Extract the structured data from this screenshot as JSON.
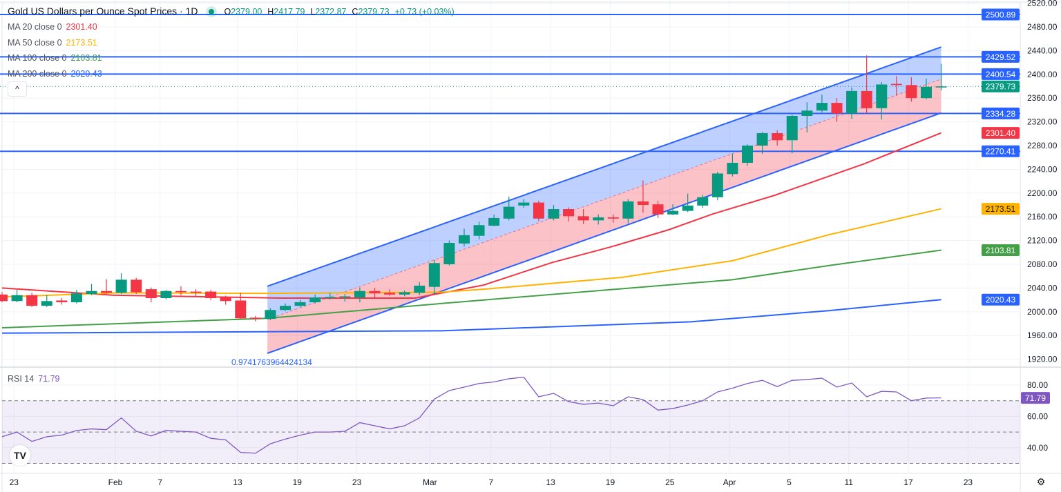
{
  "header": {
    "title": "Gold US Dollars per Ounce Spot Prices · 1D",
    "ohlc": {
      "o_label": "O",
      "o": "2379.00",
      "h_label": "H",
      "h": "2417.79",
      "l_label": "L",
      "l": "2372.87",
      "c_label": "C",
      "c": "2379.73",
      "change": "+0.73 (+0.03%)"
    },
    "collapse_icon": "chevron-up-icon",
    "collapse_glyph": "^"
  },
  "indicators": [
    {
      "label": "MA 20 close 0",
      "value": "2301.40",
      "color": "#f23645"
    },
    {
      "label": "MA 50 close 0",
      "value": "2173.51",
      "color": "#ffb300"
    },
    {
      "label": "MA 100 close 0",
      "value": "2103.81",
      "color": "#43a047"
    },
    {
      "label": "MA 200 close 0",
      "value": "2020.43",
      "color": "#2962ff"
    }
  ],
  "rsi_legend": {
    "label": "RSI 14",
    "value": "71.79",
    "color": "#7e57c2"
  },
  "channel_label": "0.9741763964424134",
  "logo_text": "TV",
  "settings_icon": "gear-icon",
  "settings_glyph": "⚙",
  "colors": {
    "up": "#089981",
    "down": "#f23645",
    "line": "#2962ff",
    "grid": "#f0f3fa",
    "rsi": "#7e57c2"
  },
  "chart_data": {
    "type": "candlestick",
    "title": "Gold US Dollars per Ounce Spot Prices · 1D",
    "ylim": [
      1905,
      2525
    ],
    "y_ticks": [
      "2520.00",
      "2480.00",
      "2440.00",
      "2400.00",
      "2360.00",
      "2320.00",
      "2280.00",
      "2240.00",
      "2200.00",
      "2160.00",
      "2120.00",
      "2080.00",
      "2040.00",
      "2000.00",
      "1960.00",
      "1920.00"
    ],
    "x_ticks": [
      {
        "bar": 0.8,
        "label": "23"
      },
      {
        "bar": 7.6,
        "label": "Feb"
      },
      {
        "bar": 10.6,
        "label": "7"
      },
      {
        "bar": 15.8,
        "label": "13"
      },
      {
        "bar": 19.8,
        "label": "19"
      },
      {
        "bar": 23.8,
        "label": "23"
      },
      {
        "bar": 28.7,
        "label": "Mar"
      },
      {
        "bar": 32.8,
        "label": "7"
      },
      {
        "bar": 36.8,
        "label": "13"
      },
      {
        "bar": 40.8,
        "label": "19"
      },
      {
        "bar": 44.8,
        "label": "25"
      },
      {
        "bar": 48.8,
        "label": "Apr"
      },
      {
        "bar": 52.8,
        "label": "5"
      },
      {
        "bar": 56.8,
        "label": "11"
      },
      {
        "bar": 60.8,
        "label": "17"
      },
      {
        "bar": 64.8,
        "label": "23"
      }
    ],
    "candles_ohlc": [
      [
        2029,
        2033,
        2016,
        2018
      ],
      [
        2018,
        2037,
        2016,
        2028
      ],
      [
        2028,
        2032,
        2008,
        2010
      ],
      [
        2010,
        2028,
        2008,
        2018
      ],
      [
        2019,
        2023,
        2012,
        2016
      ],
      [
        2016,
        2037,
        2014,
        2031
      ],
      [
        2030,
        2047,
        2028,
        2035
      ],
      [
        2035,
        2055,
        2030,
        2032
      ],
      [
        2032,
        2065,
        2030,
        2054
      ],
      [
        2054,
        2057,
        2030,
        2033
      ],
      [
        2038,
        2041,
        2016,
        2023
      ],
      [
        2023,
        2037,
        2021,
        2035
      ],
      [
        2035,
        2043,
        2028,
        2033
      ],
      [
        2034,
        2038,
        2026,
        2032
      ],
      [
        2034,
        2037,
        2020,
        2023
      ],
      [
        2024,
        2027,
        2012,
        2018
      ],
      [
        2019,
        2032,
        1988,
        1989
      ],
      [
        1990,
        1993,
        1984,
        1988
      ],
      [
        1988,
        2006,
        1986,
        2003
      ],
      [
        2003,
        2014,
        2001,
        2010
      ],
      [
        2010,
        2020,
        2008,
        2016
      ],
      [
        2016,
        2029,
        2014,
        2024
      ],
      [
        2024,
        2032,
        2020,
        2025
      ],
      [
        2025,
        2030,
        2017,
        2026
      ],
      [
        2024,
        2041,
        2016,
        2035
      ],
      [
        2035,
        2040,
        2024,
        2031
      ],
      [
        2032,
        2038,
        2027,
        2029
      ],
      [
        2029,
        2036,
        2026,
        2033
      ],
      [
        2032,
        2050,
        2028,
        2044
      ],
      [
        2042,
        2087,
        2030,
        2082
      ],
      [
        2080,
        2120,
        2078,
        2116
      ],
      [
        2115,
        2140,
        2110,
        2129
      ],
      [
        2128,
        2152,
        2122,
        2146
      ],
      [
        2145,
        2164,
        2144,
        2158
      ],
      [
        2157,
        2194,
        2154,
        2177
      ],
      [
        2179,
        2190,
        2175,
        2184
      ],
      [
        2184,
        2187,
        2153,
        2157
      ],
      [
        2157,
        2180,
        2154,
        2173
      ],
      [
        2173,
        2176,
        2152,
        2161
      ],
      [
        2161,
        2173,
        2148,
        2154
      ],
      [
        2154,
        2164,
        2147,
        2159
      ],
      [
        2159,
        2164,
        2150,
        2157
      ],
      [
        2157,
        2190,
        2149,
        2186
      ],
      [
        2186,
        2221,
        2167,
        2180
      ],
      [
        2181,
        2187,
        2158,
        2164
      ],
      [
        2164,
        2181,
        2163,
        2170
      ],
      [
        2170,
        2199,
        2168,
        2179
      ],
      [
        2179,
        2197,
        2175,
        2193
      ],
      [
        2193,
        2236,
        2188,
        2233
      ],
      [
        2232,
        2266,
        2228,
        2251
      ],
      [
        2251,
        2282,
        2246,
        2280
      ],
      [
        2280,
        2303,
        2266,
        2301
      ],
      [
        2301,
        2306,
        2280,
        2289
      ],
      [
        2289,
        2332,
        2267,
        2330
      ],
      [
        2330,
        2353,
        2302,
        2339
      ],
      [
        2339,
        2366,
        2336,
        2352
      ],
      [
        2352,
        2360,
        2320,
        2334
      ],
      [
        2334,
        2378,
        2325,
        2372
      ],
      [
        2372,
        2432,
        2335,
        2343
      ],
      [
        2343,
        2387,
        2324,
        2383
      ],
      [
        2384,
        2397,
        2364,
        2382
      ],
      [
        2382,
        2395,
        2354,
        2360
      ],
      [
        2360,
        2393,
        2358,
        2379
      ],
      [
        2379,
        2417.79,
        2372.87,
        2379.73
      ]
    ],
    "moving_averages": [
      {
        "name": "MA 20",
        "color": "#f23645",
        "points": [
          [
            0,
            2040
          ],
          [
            7.4,
            2028
          ],
          [
            18.8,
            2023
          ],
          [
            27.7,
            2023
          ],
          [
            32.3,
            2045
          ],
          [
            36.9,
            2083
          ],
          [
            40.8,
            2109
          ],
          [
            44.7,
            2138
          ],
          [
            47.7,
            2165
          ],
          [
            51.8,
            2196
          ],
          [
            57.8,
            2249
          ],
          [
            63,
            2301.4
          ]
        ]
      },
      {
        "name": "MA 50",
        "color": "#ffb300",
        "points": [
          [
            0,
            2025
          ],
          [
            7.8,
            2032
          ],
          [
            17.8,
            2031
          ],
          [
            29.5,
            2033
          ],
          [
            32.3,
            2038
          ],
          [
            41.6,
            2058
          ],
          [
            49,
            2086
          ],
          [
            55.5,
            2130
          ],
          [
            63,
            2173.51
          ]
        ]
      },
      {
        "name": "MA 100",
        "color": "#43a047",
        "points": [
          [
            0,
            1973
          ],
          [
            17.8,
            1989
          ],
          [
            29.5,
            2014
          ],
          [
            49,
            2054
          ],
          [
            55.5,
            2078
          ],
          [
            63,
            2103.81
          ]
        ]
      },
      {
        "name": "MA 200",
        "color": "#2962ff",
        "points": [
          [
            0,
            1964
          ],
          [
            29.5,
            1968
          ],
          [
            46.2,
            1983
          ],
          [
            55.5,
            2002
          ],
          [
            63,
            2020.43
          ]
        ]
      }
    ],
    "channel": {
      "start_bar": 17.8,
      "end_bar": 63,
      "upper": [
        2043,
        2446
      ],
      "middle": [
        1987,
        2392
      ],
      "lower": [
        1930,
        2335
      ]
    },
    "horizontal_levels": [
      "2500.89",
      "2429.52",
      "2400.54",
      "2334.28",
      "2270.41"
    ],
    "last_price": "2379.73",
    "price_badges": [
      {
        "value": "2500.89",
        "color": "#2962ff"
      },
      {
        "value": "2429.52",
        "color": "#2962ff"
      },
      {
        "value": "2400.54",
        "color": "#2962ff"
      },
      {
        "value": "2379.73",
        "color": "#089981"
      },
      {
        "value": "2334.28",
        "color": "#2962ff"
      },
      {
        "value": "2301.40",
        "color": "#f23645"
      },
      {
        "value": "2270.41",
        "color": "#2962ff"
      },
      {
        "value": "2173.51",
        "color": "#ffb300"
      },
      {
        "value": "2103.81",
        "color": "#43a047"
      },
      {
        "value": "2020.43",
        "color": "#2962ff"
      }
    ],
    "rsi": {
      "name": "RSI 14",
      "ylim": [
        25,
        90
      ],
      "y_ticks": [
        "80.00",
        "60.00",
        "40.00"
      ],
      "bands": [
        70,
        50,
        30
      ],
      "badge": "71.79",
      "values": [
        47,
        50,
        44,
        47,
        48,
        51,
        52,
        51.5,
        59,
        50.5,
        47.5,
        51,
        50.5,
        50,
        46,
        45,
        37,
        36.5,
        42.5,
        45.5,
        48,
        50,
        50,
        50.5,
        56,
        54,
        52,
        54,
        59,
        71,
        76.5,
        78.7,
        81,
        82,
        84,
        85,
        72.5,
        74.7,
        69.4,
        67.7,
        68.5,
        66.8,
        72.5,
        70.7,
        64,
        65,
        67.2,
        70,
        75.6,
        78,
        81,
        83,
        79,
        83,
        83.5,
        84.4,
        78.7,
        81.3,
        72.5,
        76,
        75.6,
        70,
        71.7,
        71.79
      ]
    }
  }
}
